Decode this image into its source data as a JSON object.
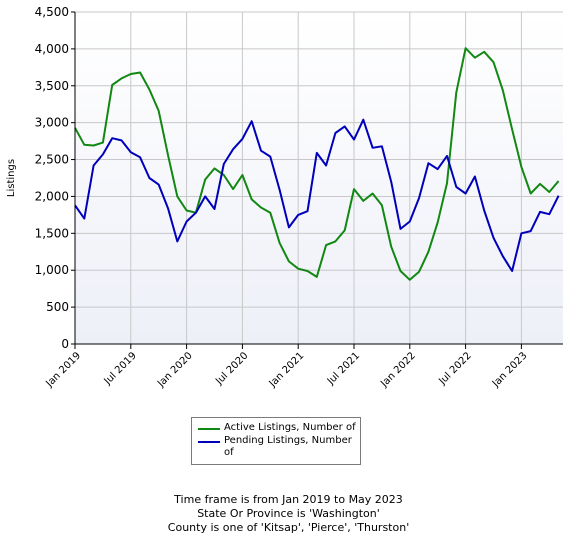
{
  "chart_data": {
    "type": "line",
    "ylabel": "Listings",
    "ylim": [
      0,
      4500
    ],
    "yticks": [
      0,
      500,
      1000,
      1500,
      2000,
      2500,
      3000,
      3500,
      4000,
      4500
    ],
    "ytick_labels": [
      "0",
      "500",
      "1,000",
      "1,500",
      "2,000",
      "2,500",
      "3,000",
      "3,500",
      "4,000",
      "4,500"
    ],
    "x_start": "Jan 2019",
    "x_end": "May 2023",
    "xticks": [
      {
        "label": "Jan 2019",
        "month_index": 0
      },
      {
        "label": "Jul 2019",
        "month_index": 6
      },
      {
        "label": "Jan 2020",
        "month_index": 12
      },
      {
        "label": "Jul 2020",
        "month_index": 18
      },
      {
        "label": "Jan 2021",
        "month_index": 24
      },
      {
        "label": "Jul 2021",
        "month_index": 30
      },
      {
        "label": "Jan 2022",
        "month_index": 36
      },
      {
        "label": "Jul 2022",
        "month_index": 42
      },
      {
        "label": "Jan 2023",
        "month_index": 48
      }
    ],
    "grid": true,
    "legend_position": "bottom",
    "series": [
      {
        "name": "Active Listings, Number of",
        "color": "#118811",
        "values": [
          2930,
          2700,
          2690,
          2730,
          3510,
          3600,
          3660,
          3680,
          3450,
          3160,
          2560,
          2000,
          1810,
          1780,
          2230,
          2380,
          2290,
          2100,
          2290,
          1960,
          1850,
          1780,
          1370,
          1120,
          1020,
          990,
          910,
          1340,
          1390,
          1540,
          2100,
          1940,
          2040,
          1880,
          1320,
          990,
          870,
          980,
          1250,
          1650,
          2180,
          3410,
          4010,
          3880,
          3960,
          3820,
          3440,
          2910,
          2400,
          2040,
          2170,
          2060,
          2210
        ]
      },
      {
        "name": "Pending Listings, Number of",
        "color": "#0000bb",
        "values": [
          1880,
          1700,
          2420,
          2570,
          2790,
          2760,
          2600,
          2530,
          2250,
          2160,
          1840,
          1390,
          1660,
          1780,
          2000,
          1830,
          2440,
          2640,
          2780,
          3020,
          2620,
          2540,
          2090,
          1580,
          1750,
          1800,
          2590,
          2420,
          2860,
          2950,
          2770,
          3040,
          2660,
          2680,
          2200,
          1560,
          1660,
          1980,
          2450,
          2370,
          2550,
          2130,
          2040,
          2270,
          1810,
          1440,
          1190,
          990,
          1500,
          1530,
          1790,
          1760,
          2010
        ]
      }
    ]
  },
  "legend": {
    "items": [
      {
        "label": "Active Listings, Number of",
        "color": "#118811"
      },
      {
        "label": "Pending Listings, Number of",
        "color": "#0000bb"
      }
    ]
  },
  "footer": {
    "line1": "Time frame is from Jan 2019 to May 2023",
    "line2": "State Or Province is 'Washington'",
    "line3": "County is one of 'Kitsap', 'Pierce', 'Thurston'"
  }
}
